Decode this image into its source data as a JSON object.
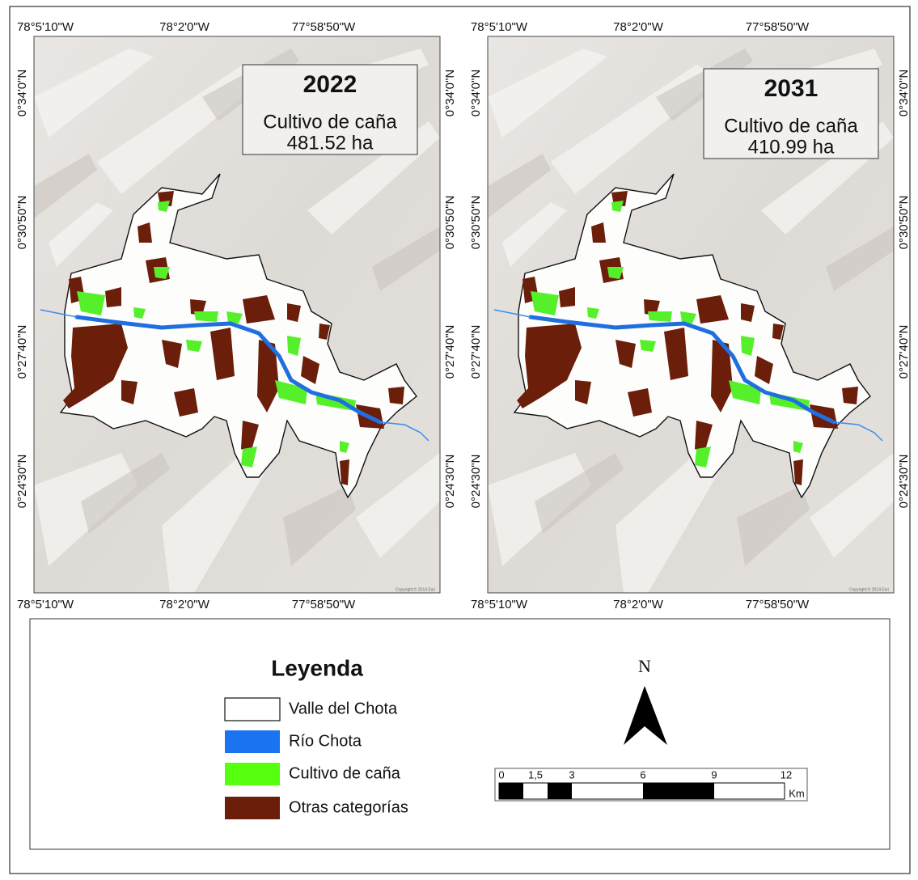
{
  "maps": [
    {
      "year": "2022",
      "crop_label": "Cultivo de caña",
      "area": "481.52 ha",
      "top_labels": [
        "78°5'10\"W",
        "78°2'0\"W",
        "77°58'50\"W"
      ],
      "bottom_labels": [
        "78°5'10\"W",
        "78°2'0\"W",
        "77°58'50\"W"
      ],
      "left_labels": [
        "0°34'0\"N",
        "0°30'50\"N",
        "0°27'40\"N",
        "0°24'30\"N"
      ],
      "right_labels": [
        "0°34'0\"N",
        "0°30'50\"N",
        "0°27'40\"N",
        "0°24'30\"N"
      ],
      "attribution": "Copyright:© 2014 Esri"
    },
    {
      "year": "2031",
      "crop_label": "Cultivo de caña",
      "area": "410.99 ha",
      "top_labels": [
        "78°5'10\"W",
        "78°2'0\"W",
        "77°58'50\"W"
      ],
      "bottom_labels": [
        "78°5'10\"W",
        "78°2'0\"W",
        "77°58'50\"W"
      ],
      "left_labels": [
        "0°34'0\"N",
        "0°30'50\"N",
        "0°27'40\"N",
        "0°24'30\"N"
      ],
      "right_labels": [
        "0°34'0\"N",
        "0°30'50\"N",
        "0°27'40\"N",
        "0°24'30\"N"
      ],
      "attribution": "Copyright:© 2014 Esri"
    }
  ],
  "legend": {
    "title": "Leyenda",
    "items": [
      "Valle del Chota",
      "Río Chota",
      "Cultivo de caña",
      "Otras categorías"
    ]
  },
  "north": "N",
  "scale": {
    "labels": [
      "0",
      "1,5",
      "3",
      "6",
      "9",
      "12"
    ],
    "unit": "Km"
  }
}
